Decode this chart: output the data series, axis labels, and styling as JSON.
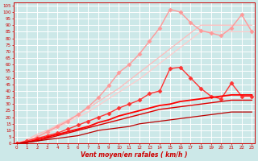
{
  "bg_color": "#cce8e8",
  "grid_color": "#ffffff",
  "xlabel": "Vent moyen/en rafales ( km/h )",
  "x_values": [
    0,
    1,
    2,
    3,
    4,
    5,
    6,
    7,
    8,
    9,
    10,
    11,
    12,
    13,
    14,
    15,
    16,
    17,
    18,
    19,
    20,
    21,
    22,
    23
  ],
  "series": [
    {
      "name": "pink_upper1",
      "color": "#ffbbbb",
      "linewidth": 0.9,
      "marker": null,
      "values": [
        0,
        3,
        7,
        10,
        14,
        18,
        22,
        27,
        32,
        37,
        42,
        48,
        54,
        60,
        66,
        72,
        78,
        84,
        90,
        90,
        90,
        90,
        90,
        90
      ]
    },
    {
      "name": "pink_upper2",
      "color": "#ffcccc",
      "linewidth": 0.9,
      "marker": null,
      "values": [
        0,
        2,
        5,
        8,
        12,
        16,
        20,
        24,
        29,
        34,
        39,
        44,
        49,
        55,
        61,
        67,
        73,
        79,
        85,
        85,
        85,
        85,
        85,
        85
      ]
    },
    {
      "name": "pink_markers_top",
      "color": "#ff9999",
      "linewidth": 1.0,
      "marker": "D",
      "markersize": 2.5,
      "values": [
        0,
        2,
        5,
        9,
        13,
        17,
        22,
        28,
        35,
        44,
        54,
        60,
        68,
        78,
        88,
        102,
        100,
        92,
        86,
        84,
        82,
        88,
        98,
        85
      ]
    },
    {
      "name": "red_markers_mid",
      "color": "#ff3333",
      "linewidth": 1.0,
      "marker": "D",
      "markersize": 2.5,
      "values": [
        0,
        2,
        4,
        6,
        8,
        11,
        14,
        17,
        20,
        23,
        27,
        30,
        33,
        38,
        40,
        57,
        58,
        50,
        42,
        36,
        34,
        46,
        36,
        36
      ]
    },
    {
      "name": "red_solid1",
      "color": "#ff0000",
      "linewidth": 1.3,
      "marker": null,
      "values": [
        0,
        1,
        3,
        5,
        7,
        9,
        11,
        13,
        16,
        18,
        21,
        23,
        25,
        27,
        29,
        30,
        32,
        33,
        34,
        35,
        36,
        37,
        37,
        37
      ]
    },
    {
      "name": "red_solid2",
      "color": "#dd0000",
      "linewidth": 1.0,
      "marker": null,
      "values": [
        0,
        1,
        2,
        4,
        6,
        8,
        10,
        12,
        14,
        16,
        18,
        20,
        22,
        24,
        26,
        27,
        28,
        29,
        30,
        31,
        32,
        33,
        33,
        33
      ]
    },
    {
      "name": "dark_red_bottom",
      "color": "#bb0000",
      "linewidth": 0.9,
      "marker": null,
      "values": [
        0,
        1,
        2,
        3,
        4,
        5,
        6,
        8,
        10,
        11,
        12,
        13,
        15,
        16,
        17,
        18,
        19,
        20,
        21,
        22,
        23,
        24,
        24,
        24
      ]
    }
  ],
  "yticks": [
    0,
    5,
    10,
    15,
    20,
    25,
    30,
    35,
    40,
    45,
    50,
    55,
    60,
    65,
    70,
    75,
    80,
    85,
    90,
    95,
    100,
    105
  ],
  "ylim": [
    0,
    107
  ],
  "xlim": [
    -0.3,
    23.3
  ]
}
